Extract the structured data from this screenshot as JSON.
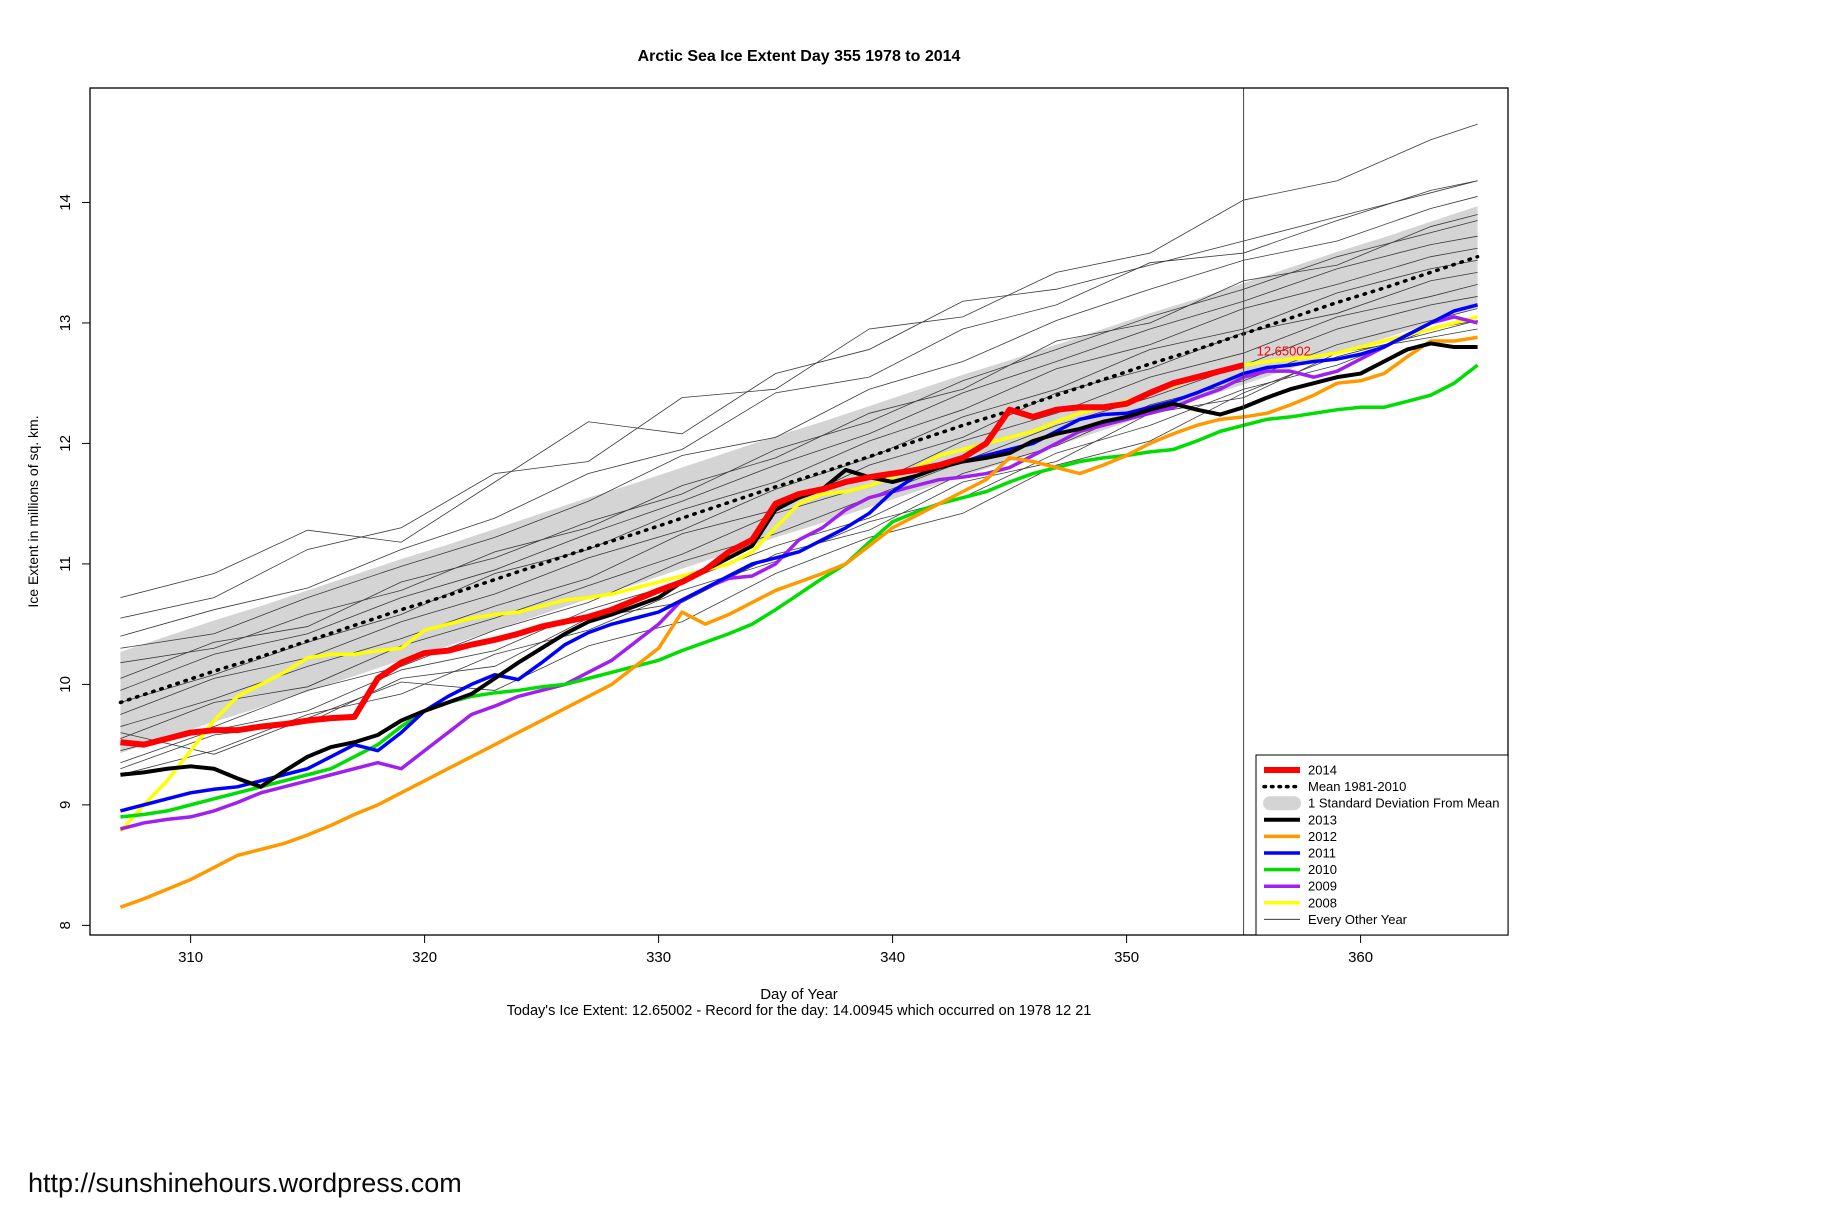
{
  "page": {
    "footer_url": "http://sunshinehours.wordpress.com",
    "footer_note": "Today's Ice Extent: 12.65002  - Record for the day: 14.00945 which occurred on 1978 12 21"
  },
  "chart_data": {
    "type": "line",
    "title": "Arctic Sea Ice Extent Day 355 1978 to 2014",
    "xlabel": "Day of Year",
    "ylabel": "Ice Extent in millions of sq. km.",
    "xlim": [
      305.7,
      366.3
    ],
    "ylim": [
      7.92,
      14.95
    ],
    "xticks": [
      310,
      320,
      330,
      340,
      350,
      360
    ],
    "yticks": [
      8,
      9,
      10,
      11,
      12,
      13,
      14
    ],
    "grid": false,
    "legend_position": "bottom-right",
    "vline_x": 355,
    "annotation": {
      "text": "12.65002",
      "x": 355.3,
      "y": 12.73,
      "color": "#FF0000"
    },
    "x_daily": [
      307,
      308,
      309,
      310,
      311,
      312,
      313,
      314,
      315,
      316,
      317,
      318,
      319,
      320,
      321,
      322,
      323,
      324,
      325,
      326,
      327,
      328,
      329,
      330,
      331,
      332,
      333,
      334,
      335,
      336,
      337,
      338,
      339,
      340,
      341,
      342,
      343,
      344,
      345,
      346,
      347,
      348,
      349,
      350,
      351,
      352,
      353,
      354,
      355,
      356,
      357,
      358,
      359,
      360,
      361,
      362,
      363,
      364,
      365
    ],
    "band": {
      "name": "1 Standard Deviation From Mean",
      "color": "#D4D4D4",
      "x": [
        307,
        309,
        311,
        313,
        315,
        317,
        319,
        321,
        323,
        325,
        327,
        329,
        331,
        333,
        335,
        337,
        339,
        341,
        343,
        345,
        347,
        349,
        351,
        353,
        355,
        357,
        359,
        361,
        363,
        365
      ],
      "upper": [
        10.27,
        10.4,
        10.53,
        10.65,
        10.78,
        10.91,
        11.04,
        11.16,
        11.29,
        11.42,
        11.55,
        11.67,
        11.8,
        11.93,
        12.06,
        12.18,
        12.31,
        12.44,
        12.57,
        12.69,
        12.82,
        12.95,
        13.08,
        13.2,
        13.33,
        13.46,
        13.59,
        13.71,
        13.84,
        13.97
      ],
      "lower": [
        9.43,
        9.56,
        9.69,
        9.81,
        9.94,
        10.07,
        10.2,
        10.32,
        10.45,
        10.58,
        10.71,
        10.83,
        10.96,
        11.09,
        11.22,
        11.34,
        11.47,
        11.6,
        11.73,
        11.85,
        11.98,
        12.11,
        12.24,
        12.36,
        12.49,
        12.62,
        12.75,
        12.87,
        13.0,
        13.13
      ]
    },
    "mean_series": {
      "name": "Mean 1981-2010",
      "color": "#000000",
      "width": 3.5,
      "dash": "1.5 7",
      "x": [
        307,
        309,
        311,
        313,
        315,
        317,
        319,
        321,
        323,
        325,
        327,
        329,
        331,
        333,
        335,
        337,
        339,
        341,
        343,
        345,
        347,
        349,
        351,
        353,
        355,
        357,
        359,
        361,
        363,
        365
      ],
      "y": [
        9.85,
        9.98,
        10.11,
        10.23,
        10.36,
        10.49,
        10.62,
        10.74,
        10.87,
        11.0,
        11.13,
        11.25,
        11.38,
        11.51,
        11.64,
        11.76,
        11.89,
        12.02,
        12.15,
        12.27,
        12.4,
        12.53,
        12.66,
        12.78,
        12.91,
        13.04,
        13.17,
        13.29,
        13.42,
        13.55
      ]
    },
    "background": {
      "name": "Every Other Year",
      "color": "#3a3a3a",
      "width": 0.8,
      "x": [
        307,
        311,
        315,
        319,
        323,
        327,
        331,
        335,
        339,
        343,
        347,
        351,
        355,
        359,
        363,
        365
      ],
      "lines": [
        [
          10.55,
          10.72,
          11.12,
          11.3,
          11.75,
          11.85,
          12.38,
          12.45,
          12.95,
          13.05,
          13.42,
          13.58,
          14.02,
          14.18,
          14.52,
          14.65
        ],
        [
          10.4,
          10.62,
          10.8,
          11.12,
          11.38,
          11.75,
          11.95,
          12.42,
          12.55,
          12.95,
          13.15,
          13.5,
          13.58,
          13.85,
          14.1,
          14.18
        ],
        [
          10.3,
          10.42,
          10.72,
          10.98,
          11.22,
          11.52,
          11.9,
          12.05,
          12.45,
          12.68,
          13.02,
          13.28,
          13.52,
          13.68,
          13.95,
          14.05
        ],
        [
          10.72,
          10.92,
          11.28,
          11.18,
          11.68,
          12.18,
          12.08,
          12.58,
          12.78,
          13.18,
          13.28,
          13.48,
          13.68,
          13.88,
          14.08,
          14.18
        ],
        [
          10.05,
          10.35,
          10.48,
          10.85,
          11.05,
          11.35,
          11.58,
          11.95,
          12.18,
          12.52,
          12.78,
          13.05,
          13.28,
          13.55,
          13.75,
          13.85
        ],
        [
          9.95,
          10.25,
          10.42,
          10.72,
          10.95,
          11.25,
          11.52,
          11.82,
          12.08,
          12.42,
          12.68,
          12.95,
          13.18,
          13.45,
          13.65,
          13.72
        ],
        [
          9.85,
          10.08,
          10.35,
          10.58,
          10.92,
          11.12,
          11.45,
          11.68,
          12.02,
          12.28,
          12.62,
          12.82,
          13.12,
          13.32,
          13.55,
          13.62
        ],
        [
          9.75,
          10.05,
          10.22,
          10.52,
          10.75,
          11.05,
          11.28,
          11.62,
          11.88,
          12.22,
          12.45,
          12.78,
          12.95,
          13.25,
          13.45,
          13.52
        ],
        [
          9.65,
          9.88,
          10.15,
          10.38,
          10.65,
          10.88,
          11.25,
          11.45,
          11.82,
          12.05,
          12.42,
          12.62,
          12.92,
          13.08,
          13.35,
          13.42
        ],
        [
          9.55,
          9.85,
          9.98,
          10.32,
          10.55,
          10.82,
          11.08,
          11.42,
          11.65,
          12.02,
          12.25,
          12.55,
          12.75,
          13.05,
          13.22,
          13.32
        ],
        [
          9.45,
          9.65,
          9.95,
          10.15,
          10.45,
          10.68,
          11.02,
          11.25,
          11.55,
          11.85,
          12.15,
          12.38,
          12.65,
          12.95,
          13.15,
          13.22
        ],
        [
          9.35,
          9.62,
          9.78,
          10.12,
          10.28,
          10.62,
          10.85,
          11.15,
          11.38,
          11.75,
          11.98,
          12.32,
          12.52,
          12.82,
          13.02,
          13.12
        ],
        [
          9.25,
          9.45,
          9.75,
          9.92,
          10.25,
          10.45,
          10.78,
          11.02,
          11.35,
          11.55,
          11.92,
          12.15,
          12.45,
          12.65,
          12.95,
          13.02
        ],
        [
          9.6,
          9.42,
          9.72,
          10.02,
          9.95,
          10.32,
          10.52,
          10.92,
          11.22,
          11.42,
          11.82,
          12.02,
          12.42,
          12.72,
          12.92,
          13.02
        ],
        [
          10.18,
          10.3,
          10.58,
          10.78,
          11.1,
          11.3,
          11.65,
          11.88,
          12.25,
          12.45,
          12.85,
          13.0,
          13.35,
          13.48,
          13.8,
          13.9
        ],
        [
          9.3,
          9.58,
          9.68,
          10.05,
          10.15,
          10.55,
          10.68,
          11.08,
          11.28,
          11.68,
          11.85,
          12.25,
          12.38,
          12.75,
          12.88,
          12.95
        ]
      ]
    },
    "series": [
      {
        "name": "2008",
        "color": "#FFFF00",
        "width": 3.5,
        "y": [
          8.78,
          9.0,
          9.2,
          9.45,
          9.7,
          9.9,
          10.0,
          10.1,
          10.22,
          10.25,
          10.25,
          10.28,
          10.3,
          10.45,
          10.5,
          10.55,
          10.58,
          10.6,
          10.65,
          10.7,
          10.72,
          10.75,
          10.8,
          10.85,
          10.9,
          10.95,
          11.0,
          11.1,
          11.3,
          11.5,
          11.58,
          11.6,
          11.65,
          11.72,
          11.8,
          11.9,
          11.95,
          12.0,
          12.05,
          12.1,
          12.18,
          12.25,
          12.3,
          12.35,
          12.42,
          12.48,
          12.55,
          12.6,
          12.65,
          12.68,
          12.7,
          12.72,
          12.75,
          12.8,
          12.85,
          12.9,
          12.95,
          13.0,
          13.05
        ]
      },
      {
        "name": "2009",
        "color": "#A020F0",
        "width": 3.5,
        "y": [
          8.8,
          8.85,
          8.88,
          8.9,
          8.95,
          9.02,
          9.1,
          9.15,
          9.2,
          9.25,
          9.3,
          9.35,
          9.3,
          9.45,
          9.6,
          9.75,
          9.82,
          9.9,
          9.95,
          10.0,
          10.1,
          10.2,
          10.35,
          10.5,
          10.7,
          10.8,
          10.88,
          10.9,
          11.0,
          11.2,
          11.3,
          11.45,
          11.55,
          11.6,
          11.65,
          11.7,
          11.72,
          11.75,
          11.8,
          11.9,
          12.0,
          12.1,
          12.15,
          12.2,
          12.25,
          12.3,
          12.38,
          12.45,
          12.55,
          12.6,
          12.6,
          12.55,
          12.6,
          12.7,
          12.8,
          12.9,
          13.0,
          13.05,
          13.0
        ]
      },
      {
        "name": "2010",
        "color": "#00DD00",
        "width": 3.5,
        "y": [
          8.9,
          8.92,
          8.95,
          9.0,
          9.05,
          9.1,
          9.15,
          9.2,
          9.25,
          9.3,
          9.4,
          9.5,
          9.65,
          9.78,
          9.85,
          9.9,
          9.93,
          9.95,
          9.98,
          10.0,
          10.05,
          10.1,
          10.15,
          10.2,
          10.28,
          10.35,
          10.42,
          10.5,
          10.62,
          10.75,
          10.88,
          11.0,
          11.18,
          11.35,
          11.43,
          11.5,
          11.55,
          11.6,
          11.68,
          11.75,
          11.8,
          11.85,
          11.88,
          11.9,
          11.93,
          11.95,
          12.02,
          12.1,
          12.15,
          12.2,
          12.22,
          12.25,
          12.28,
          12.3,
          12.3,
          12.35,
          12.4,
          12.5,
          12.65
        ]
      },
      {
        "name": "2011",
        "color": "#0000FF",
        "width": 3.5,
        "y": [
          8.95,
          9.0,
          9.05,
          9.1,
          9.13,
          9.15,
          9.2,
          9.25,
          9.3,
          9.4,
          9.5,
          9.45,
          9.6,
          9.78,
          9.9,
          10.0,
          10.08,
          10.04,
          10.18,
          10.33,
          10.43,
          10.5,
          10.55,
          10.6,
          10.7,
          10.8,
          10.9,
          11.0,
          11.05,
          11.1,
          11.2,
          11.3,
          11.42,
          11.6,
          11.73,
          11.8,
          11.85,
          11.9,
          11.95,
          12.0,
          12.1,
          12.2,
          12.24,
          12.25,
          12.3,
          12.35,
          12.42,
          12.5,
          12.58,
          12.63,
          12.65,
          12.68,
          12.7,
          12.74,
          12.8,
          12.9,
          13.0,
          13.1,
          13.15
        ]
      },
      {
        "name": "2012",
        "color": "#FF9900",
        "width": 3.5,
        "y": [
          8.15,
          8.22,
          8.3,
          8.38,
          8.48,
          8.58,
          8.63,
          8.68,
          8.75,
          8.83,
          8.92,
          9.0,
          9.1,
          9.2,
          9.3,
          9.4,
          9.5,
          9.6,
          9.7,
          9.8,
          9.9,
          10.0,
          10.15,
          10.3,
          10.6,
          10.5,
          10.58,
          10.68,
          10.78,
          10.85,
          10.92,
          11.0,
          11.15,
          11.3,
          11.4,
          11.5,
          11.6,
          11.7,
          11.88,
          11.85,
          11.8,
          11.75,
          11.82,
          11.9,
          12.0,
          12.08,
          12.15,
          12.2,
          12.22,
          12.25,
          12.32,
          12.4,
          12.5,
          12.52,
          12.58,
          12.72,
          12.85,
          12.85,
          12.88
        ]
      },
      {
        "name": "2013",
        "color": "#000000",
        "width": 4,
        "y": [
          9.25,
          9.27,
          9.3,
          9.32,
          9.3,
          9.22,
          9.15,
          9.28,
          9.4,
          9.48,
          9.52,
          9.58,
          9.7,
          9.78,
          9.85,
          9.92,
          10.05,
          10.18,
          10.3,
          10.42,
          10.52,
          10.58,
          10.65,
          10.72,
          10.85,
          10.95,
          11.05,
          11.15,
          11.45,
          11.55,
          11.62,
          11.78,
          11.72,
          11.68,
          11.73,
          11.8,
          11.85,
          11.88,
          11.92,
          12.02,
          12.08,
          12.12,
          12.18,
          12.22,
          12.28,
          12.33,
          12.28,
          12.24,
          12.3,
          12.38,
          12.45,
          12.5,
          12.55,
          12.58,
          12.68,
          12.78,
          12.83,
          12.8,
          12.8
        ]
      },
      {
        "name": "2014",
        "color": "#FF0000",
        "width": 6,
        "y": [
          9.52,
          9.5,
          9.55,
          9.6,
          9.62,
          9.62,
          9.65,
          9.67,
          9.7,
          9.72,
          9.73,
          10.05,
          10.18,
          10.26,
          10.28,
          10.33,
          10.37,
          10.42,
          10.48,
          10.52,
          10.56,
          10.62,
          10.7,
          10.78,
          10.85,
          10.95,
          11.1,
          11.2,
          11.5,
          11.58,
          11.62,
          11.68,
          11.72,
          11.75,
          11.78,
          11.82,
          11.88,
          12.0,
          12.28,
          12.22,
          12.28,
          12.3,
          12.3,
          12.33,
          12.42,
          12.5,
          12.55,
          12.6,
          12.65
        ]
      }
    ],
    "legend": [
      {
        "label": "2014",
        "swatch": "line",
        "color": "#FF0000",
        "width": 6
      },
      {
        "label": "Mean 1981-2010",
        "swatch": "dashed",
        "color": "#000000",
        "width": 3.5
      },
      {
        "label": "1 Standard Deviation From Mean",
        "swatch": "band",
        "color": "#D4D4D4",
        "width": 14
      },
      {
        "label": "2013",
        "swatch": "line",
        "color": "#000000",
        "width": 4
      },
      {
        "label": "2012",
        "swatch": "line",
        "color": "#FF9900",
        "width": 3.5
      },
      {
        "label": "2011",
        "swatch": "line",
        "color": "#0000FF",
        "width": 3.5
      },
      {
        "label": "2010",
        "swatch": "line",
        "color": "#00DD00",
        "width": 3.5
      },
      {
        "label": "2009",
        "swatch": "line",
        "color": "#A020F0",
        "width": 3.5
      },
      {
        "label": "2008",
        "swatch": "line",
        "color": "#FFFF00",
        "width": 3.5
      },
      {
        "label": "Every Other Year",
        "swatch": "thin-line",
        "color": "#3a3a3a",
        "width": 1
      }
    ]
  }
}
